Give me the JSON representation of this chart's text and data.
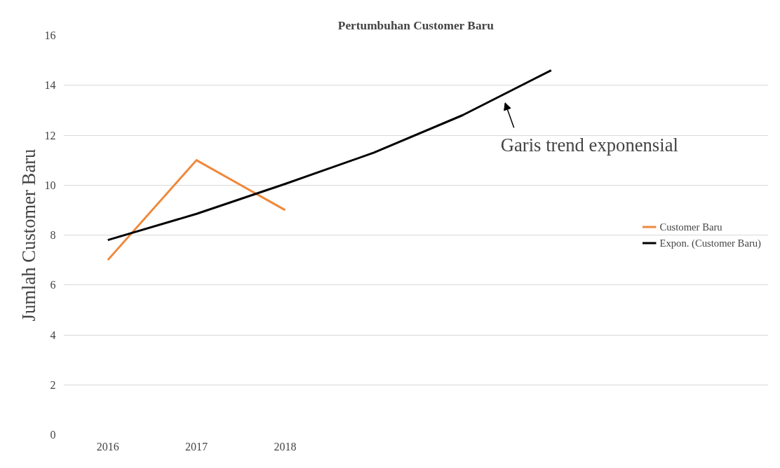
{
  "chart_data": {
    "type": "line",
    "title": "Pertumbuhan Customer Baru",
    "ylabel": "Jumlah Customer Baru",
    "categories": [
      "2016",
      "2017",
      "2018",
      null,
      null,
      null
    ],
    "series": [
      {
        "name": "Customer Baru",
        "color": "#f0883a",
        "values": [
          7,
          11,
          9,
          null,
          null,
          null
        ]
      },
      {
        "name": "Expon. (Customer Baru)",
        "color": "#000000",
        "values": [
          7.8,
          8.85,
          10.05,
          11.3,
          12.8,
          14.6
        ]
      }
    ],
    "ylim": [
      0,
      16
    ],
    "yticks": [
      0,
      2,
      4,
      6,
      8,
      10,
      12,
      14,
      16
    ],
    "annotations": [
      "Garis trend exponensial"
    ],
    "grid": "y",
    "legend": "right",
    "marker": "none",
    "line_style": "solid"
  }
}
